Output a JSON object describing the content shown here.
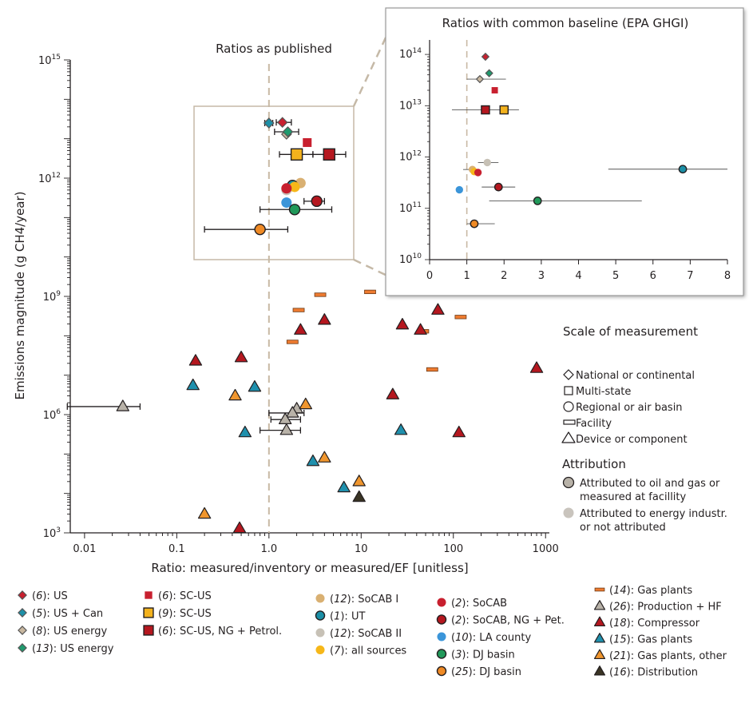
{
  "chart_data": [
    {
      "type": "scatter",
      "title": "Ratios as published",
      "xlabel": "Ratio: measured/inventory or measured/EF [unitless]",
      "ylabel": "Emissions magnitude (g CH4/year)",
      "x_scale": "log",
      "y_scale": "log",
      "xlim": [
        0.007,
        1100
      ],
      "ylim": [
        1000,
        1000000000000000.0
      ],
      "x_ticks": [
        "0.01",
        "0.1",
        "1.0",
        "10",
        "100",
        "1000"
      ],
      "x_tick_values": [
        0.01,
        0.1,
        1,
        10,
        100,
        1000
      ],
      "y_ticks": [
        {
          "base": "10",
          "exp": "3",
          "value": 1000
        },
        {
          "base": "10",
          "exp": "6",
          "value": 1000000
        },
        {
          "base": "10",
          "exp": "9",
          "value": 1000000000
        },
        {
          "base": "10",
          "exp": "12",
          "value": 1000000000000
        },
        {
          "base": "10",
          "exp": "15",
          "value": 1000000000000000
        }
      ],
      "reference_line_x": 1,
      "points": [
        {
          "series": "us",
          "x": 1.4,
          "y": 26000000000000.0,
          "xerr": [
            1.2,
            1.75
          ]
        },
        {
          "series": "uscan",
          "x": 1.0,
          "y": 25000000000000.0,
          "xerr": [
            0.9,
            1.1
          ]
        },
        {
          "series": "usenergy8",
          "x": 1.55,
          "y": 13000000000000.0
        },
        {
          "series": "usenergy13",
          "x": 1.6,
          "y": 15000000000000.0,
          "xerr": [
            1.15,
            2.1
          ]
        },
        {
          "series": "scus6",
          "x": 2.6,
          "y": 8000000000000.0
        },
        {
          "series": "scus9",
          "x": 2.0,
          "y": 4000000000000.0,
          "xerr": [
            1.3,
            3.0
          ]
        },
        {
          "series": "scusng",
          "x": 4.5,
          "y": 4000000000000.0,
          "xerr": [
            3.0,
            6.8
          ]
        },
        {
          "series": "socab1",
          "x": 2.2,
          "y": 750000000000.0
        },
        {
          "series": "ut",
          "x": 1.8,
          "y": 650000000000.0
        },
        {
          "series": "socab2",
          "x": 1.55,
          "y": 500000000000.0
        },
        {
          "series": "allsrc",
          "x": 1.9,
          "y": 600000000000.0
        },
        {
          "series": "socab",
          "x": 1.55,
          "y": 550000000000.0
        },
        {
          "series": "socabng",
          "x": 3.3,
          "y": 260000000000.0,
          "xerr": [
            2.4,
            4.0
          ]
        },
        {
          "series": "lacounty",
          "x": 1.55,
          "y": 240000000000.0
        },
        {
          "series": "djbasin3",
          "x": 1.9,
          "y": 160000000000.0,
          "xerr": [
            0.8,
            4.8
          ]
        },
        {
          "series": "djbasin25",
          "x": 0.8,
          "y": 50000000000.0,
          "xerr": [
            0.2,
            1.6
          ]
        },
        {
          "series": "gasplants14",
          "x": 12.5,
          "y": 1300000000.0
        },
        {
          "series": "gasplants14",
          "x": 3.6,
          "y": 1100000000.0
        },
        {
          "series": "gasplants14",
          "x": 2.1,
          "y": 450000000.0
        },
        {
          "series": "gasplants14",
          "x": 120,
          "y": 300000000.0
        },
        {
          "series": "gasplants14",
          "x": 47,
          "y": 130000000.0
        },
        {
          "series": "gasplants14",
          "x": 1.8,
          "y": 70000000.0
        },
        {
          "series": "gasplants14",
          "x": 59,
          "y": 14000000.0
        },
        {
          "series": "production",
          "x": 0.026,
          "y": 1600000.0,
          "xerr": [
            0.0065,
            0.04
          ]
        },
        {
          "series": "production",
          "x": 2.0,
          "y": 1400000.0
        },
        {
          "series": "production",
          "x": 1.8,
          "y": 1100000.0,
          "xerr": [
            1.0,
            2.4
          ]
        },
        {
          "series": "production",
          "x": 1.5,
          "y": 750000.0,
          "xerr": [
            1.05,
            2.2
          ]
        },
        {
          "series": "production",
          "x": 1.55,
          "y": 400000.0,
          "xerr": [
            0.8,
            2.2
          ]
        },
        {
          "series": "compressor",
          "x": 68,
          "y": 450000000.0
        },
        {
          "series": "compressor",
          "x": 4.0,
          "y": 250000000.0
        },
        {
          "series": "compressor",
          "x": 28,
          "y": 190000000.0
        },
        {
          "series": "compressor",
          "x": 2.2,
          "y": 140000000.0
        },
        {
          "series": "compressor",
          "x": 44,
          "y": 140000000.0
        },
        {
          "series": "compressor",
          "x": 0.16,
          "y": 23000000.0
        },
        {
          "series": "compressor",
          "x": 0.5,
          "y": 28000000.0
        },
        {
          "series": "compressor",
          "x": 800,
          "y": 15000000.0
        },
        {
          "series": "compressor",
          "x": 22,
          "y": 3200000.0
        },
        {
          "series": "compressor",
          "x": 115,
          "y": 350000.0
        },
        {
          "series": "compressor",
          "x": 0.48,
          "y": 1300.0
        },
        {
          "series": "gasplants15",
          "x": 0.15,
          "y": 5500000.0
        },
        {
          "series": "gasplants15",
          "x": 0.7,
          "y": 5000000.0
        },
        {
          "series": "gasplants15",
          "x": 0.55,
          "y": 350000.0
        },
        {
          "series": "gasplants15",
          "x": 27,
          "y": 400000.0
        },
        {
          "series": "gasplants15",
          "x": 3.0,
          "y": 65000.0
        },
        {
          "series": "gasplants15",
          "x": 6.5,
          "y": 14000.0
        },
        {
          "series": "gasplantsother",
          "x": 0.43,
          "y": 3000000.0
        },
        {
          "series": "gasplantsother",
          "x": 2.5,
          "y": 1800000.0
        },
        {
          "series": "gasplantsother",
          "x": 4.0,
          "y": 80000.0
        },
        {
          "series": "gasplantsother",
          "x": 9.5,
          "y": 20000.0
        },
        {
          "series": "gasplantsother",
          "x": 0.2,
          "y": 3000.0
        },
        {
          "series": "distribution",
          "x": 9.5,
          "y": 8000.0
        }
      ]
    },
    {
      "type": "scatter",
      "title": "Ratios with common baseline (EPA GHGI)",
      "x_scale": "linear",
      "y_scale": "log",
      "xlim": [
        0,
        8
      ],
      "ylim": [
        10000000000.0,
        160000000000000.0
      ],
      "x_ticks": [
        "0",
        "1",
        "2",
        "3",
        "4",
        "5",
        "6",
        "7",
        "8"
      ],
      "x_tick_values": [
        0,
        1,
        2,
        3,
        4,
        5,
        6,
        7,
        8
      ],
      "y_ticks": [
        {
          "base": "10",
          "exp": "10",
          "value": 10000000000
        },
        {
          "base": "10",
          "exp": "11",
          "value": 100000000000
        },
        {
          "base": "10",
          "exp": "12",
          "value": 1000000000000
        },
        {
          "base": "10",
          "exp": "13",
          "value": 10000000000000
        },
        {
          "base": "10",
          "exp": "14",
          "value": 100000000000000
        }
      ],
      "reference_line_x": 1,
      "points": [
        {
          "series": "us",
          "x": 1.5,
          "y": 90000000000000.0
        },
        {
          "series": "usenergy13",
          "x": 1.6,
          "y": 43000000000000.0
        },
        {
          "series": "usenergy8",
          "x": 1.35,
          "y": 33000000000000.0,
          "xerr": [
            1.0,
            2.05
          ]
        },
        {
          "series": "scus6",
          "x": 1.75,
          "y": 20000000000000.0
        },
        {
          "series": "scusng",
          "x": 1.5,
          "y": 8300000000000.0,
          "xerr": [
            0.6,
            2.4
          ]
        },
        {
          "series": "scus9",
          "x": 2.0,
          "y": 8300000000000.0
        },
        {
          "series": "socab1",
          "x": 1.15,
          "y": 570000000000.0,
          "xerr": [
            0.9,
            1.25
          ]
        },
        {
          "series": "socab2",
          "x": 1.55,
          "y": 780000000000.0,
          "xerr": [
            1.3,
            1.85
          ]
        },
        {
          "series": "allsrc",
          "x": 1.2,
          "y": 520000000000.0
        },
        {
          "series": "socab",
          "x": 1.3,
          "y": 500000000000.0
        },
        {
          "series": "ut",
          "x": 6.8,
          "y": 580000000000.0,
          "xerr": [
            4.8,
            8.0
          ]
        },
        {
          "series": "socabng",
          "x": 1.85,
          "y": 260000000000.0,
          "xerr": [
            1.4,
            2.3
          ]
        },
        {
          "series": "lacounty",
          "x": 0.8,
          "y": 230000000000.0
        },
        {
          "series": "djbasin3",
          "x": 2.9,
          "y": 140000000000.0,
          "xerr": [
            1.6,
            5.7
          ]
        },
        {
          "series": "djbasin25",
          "x": 1.2,
          "y": 50000000000.0,
          "xerr": [
            1.0,
            1.75
          ]
        }
      ]
    }
  ],
  "series_styles": {
    "us": {
      "shape": "diamond",
      "color": "#c8202f",
      "stroke": "#555555"
    },
    "uscan": {
      "shape": "diamond",
      "color": "#1e90a8",
      "stroke": "#555555"
    },
    "usenergy8": {
      "shape": "diamond",
      "color": "#c9b8a0",
      "stroke": "#555555"
    },
    "usenergy13": {
      "shape": "diamond",
      "color": "#1f9a6e",
      "stroke": "#555555"
    },
    "scus6": {
      "shape": "square-small",
      "color": "#c8202f",
      "stroke": "none"
    },
    "scus9": {
      "shape": "square",
      "color": "#f3b21d",
      "stroke": "#231f20"
    },
    "scusng": {
      "shape": "square",
      "color": "#b5171f",
      "stroke": "#231f20"
    },
    "socab1": {
      "shape": "circle-small",
      "color": "#d9b072",
      "stroke": "none"
    },
    "ut": {
      "shape": "circle",
      "color": "#1b8fa6",
      "stroke": "#231f20"
    },
    "socab2": {
      "shape": "circle-small",
      "color": "#c7c1b6",
      "stroke": "none"
    },
    "allsrc": {
      "shape": "circle-small",
      "color": "#f6b719",
      "stroke": "none"
    },
    "socab": {
      "shape": "circle-small",
      "color": "#c8202f",
      "stroke": "none"
    },
    "socabng": {
      "shape": "circle",
      "color": "#b5171f",
      "stroke": "#231f20"
    },
    "lacounty": {
      "shape": "circle-small",
      "color": "#3b95d9",
      "stroke": "none"
    },
    "djbasin3": {
      "shape": "circle",
      "color": "#21995a",
      "stroke": "#231f20"
    },
    "djbasin25": {
      "shape": "circle",
      "color": "#ef8a25",
      "stroke": "#231f20"
    },
    "gasplants14": {
      "shape": "bar",
      "color": "#ee7b30",
      "stroke": "#6b3a17"
    },
    "production": {
      "shape": "triangle",
      "color": "#b8b2a8",
      "stroke": "#231f20"
    },
    "compressor": {
      "shape": "triangle",
      "color": "#b5171f",
      "stroke": "#231f20"
    },
    "gasplants15": {
      "shape": "triangle",
      "color": "#1f90ad",
      "stroke": "#231f20"
    },
    "gasplantsother": {
      "shape": "triangle",
      "color": "#f0962e",
      "stroke": "#231f20"
    },
    "distribution": {
      "shape": "triangle",
      "color": "#3a3424",
      "stroke": "#231f20"
    }
  },
  "legend": [
    {
      "series": "us",
      "ref": "6",
      "text": ": US"
    },
    {
      "series": "uscan",
      "ref": "5",
      "text": ": US + Can"
    },
    {
      "series": "usenergy8",
      "ref": "8",
      "text": ": US energy"
    },
    {
      "series": "usenergy13",
      "ref": "13",
      "text": ": US energy"
    },
    {
      "series": "scus6",
      "ref": "6",
      "text": ": SC-US"
    },
    {
      "series": "scus9",
      "ref": "9",
      "text": ": SC-US"
    },
    {
      "series": "scusng",
      "ref": "6",
      "text": ": SC-US, NG + Petrol."
    },
    {
      "series": "socab1",
      "ref": "12",
      "text": ": SoCAB I"
    },
    {
      "series": "ut",
      "ref": "1",
      "text": ": UT"
    },
    {
      "series": "socab2",
      "ref": "12",
      "text": ": SoCAB II"
    },
    {
      "series": "allsrc",
      "ref": "7",
      "text": ": all sources"
    },
    {
      "series": "socab",
      "ref": "2",
      "text": ": SoCAB"
    },
    {
      "series": "socabng",
      "ref": "2",
      "text": ": SoCAB, NG + Pet."
    },
    {
      "series": "lacounty",
      "ref": "10",
      "text": ": LA county"
    },
    {
      "series": "djbasin3",
      "ref": "3",
      "text": ": DJ basin"
    },
    {
      "series": "djbasin25",
      "ref": "25",
      "text": ": DJ basin"
    },
    {
      "series": "gasplants14",
      "ref": "14",
      "text": ": Gas plants"
    },
    {
      "series": "production",
      "ref": "26",
      "text": ": Production + HF"
    },
    {
      "series": "compressor",
      "ref": "18",
      "text": ": Compressor"
    },
    {
      "series": "gasplants15",
      "ref": "15",
      "text": ": Gas plants"
    },
    {
      "series": "gasplantsother",
      "ref": "21",
      "text": ": Gas plants, other"
    },
    {
      "series": "distribution",
      "ref": "16",
      "text": ": Distribution"
    }
  ],
  "scale_legend": {
    "title": "Scale of measurement",
    "items": [
      {
        "shape": "diamond",
        "text": "National or continental"
      },
      {
        "shape": "square",
        "text": "Multi-state"
      },
      {
        "shape": "circle",
        "text": "Regional or air basin"
      },
      {
        "shape": "bar",
        "text": "Facility"
      },
      {
        "shape": "triangle",
        "text": "Device or component"
      }
    ]
  },
  "attribution_legend": {
    "title": "Attribution",
    "items": [
      {
        "style": "outlined",
        "color": "#b8b2a8",
        "lines": [
          "Attributed to oil and gas or",
          "measured at facillity"
        ]
      },
      {
        "style": "plain",
        "color": "#c9c4bd",
        "lines": [
          "Attributed to energy industr.",
          "or not attributed"
        ]
      }
    ]
  }
}
